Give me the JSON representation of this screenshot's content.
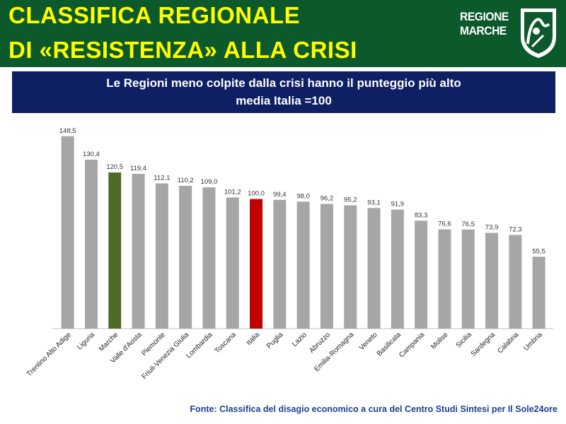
{
  "header": {
    "title_line1": "CLASSIFICA REGIONALE",
    "title_line2": "DI «RESISTENZA» ALLA CRISI",
    "logo_line1": "REGIONE",
    "logo_line2": "MARCHE"
  },
  "banner": {
    "line1": "Le Regioni meno colpite dalla crisi hanno il punteggio più alto",
    "line2": "media Italia =100"
  },
  "source": "Fonte: Classifica del disagio economico a cura del Centro Studi Sintesi per Il Sole24ore",
  "colors": {
    "header_bg": "#0c5a2b",
    "title": "#ffff00",
    "banner_bg": "#0f1f63",
    "bar_default": "#a6a6a6",
    "bar_marche": "#4e6b2a",
    "bar_italia": "#c00000",
    "source_text": "#1f3f8f"
  },
  "chart_data": {
    "type": "bar",
    "categories": [
      "Trentino Alto Adige",
      "Liguria",
      "Marche",
      "Valle d'Aosta",
      "Piemonte",
      "Friuli-Venezia Giulia",
      "Lombardia",
      "Toscana",
      "Italia",
      "Puglia",
      "Lazio",
      "Abruzzo",
      "Emilia-Romagna",
      "Veneto",
      "Basilicata",
      "Campania",
      "Molise",
      "Sicilia",
      "Sardegna",
      "Calabria",
      "Umbria"
    ],
    "values": [
      148.5,
      130.4,
      120.5,
      119.4,
      112.1,
      110.2,
      109.0,
      101.2,
      100.0,
      99.4,
      98.0,
      96.2,
      95.2,
      93.1,
      91.9,
      83.3,
      76.6,
      76.5,
      73.9,
      72.3,
      55.5
    ],
    "labels": [
      "148,5",
      "130,4",
      "120,5",
      "119,4",
      "112,1",
      "110,2",
      "109,0",
      "101,2",
      "100,0",
      "99,4",
      "98,0",
      "96,2",
      "95,2",
      "93,1",
      "91,9",
      "83,3",
      "76,6",
      "76,5",
      "73,9",
      "72,3",
      "55,5"
    ],
    "highlight": {
      "Marche": "bar_marche",
      "Italia": "bar_italia"
    },
    "ylim": [
      0,
      150
    ],
    "grid": false,
    "legend": "none"
  }
}
